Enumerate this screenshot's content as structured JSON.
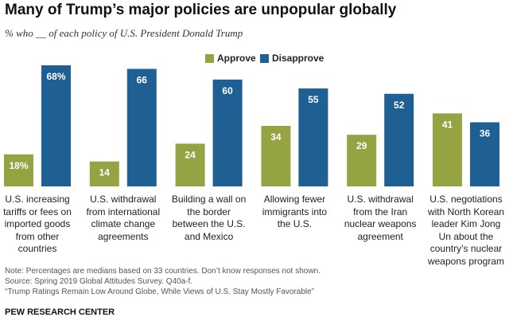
{
  "title": "Many of Trump’s major policies are unpopular globally",
  "subtitle": "% who __ of each policy of U.S. President Donald Trump",
  "colors": {
    "approve": "#95a343",
    "disapprove": "#1e5f94"
  },
  "chart_data": {
    "type": "bar",
    "categories": [
      "U.S. increasing tariffs or fees on imported goods from other countries",
      "U.S. withdrawal from international climate change agreements",
      "Building a wall on the border between the U.S. and Mexico",
      "Allowing fewer immigrants into the U.S.",
      "U.S. withdrawal from the Iran nuclear weapons agreement",
      "U.S. negotiations with North Korean leader Kim Jong Un about the country’s nuclear weapons program"
    ],
    "category_lines": [
      [
        "U.S. increasing",
        "tariffs or fees on",
        "imported goods",
        "from other",
        "countries"
      ],
      [
        "U.S. withdrawal",
        "from international",
        "climate change",
        "agreements"
      ],
      [
        "Building a wall on",
        "the border",
        "between the U.S.",
        "and Mexico"
      ],
      [
        "Allowing fewer",
        "immigrants into",
        "the U.S."
      ],
      [
        "U.S. withdrawal",
        "from the Iran",
        "nuclear weapons",
        "agreement"
      ],
      [
        "U.S. negotiations",
        "with North Korean",
        "leader Kim Jong",
        "Un about the",
        "country’s nuclear",
        "weapons program"
      ]
    ],
    "series": [
      {
        "name": "Approve",
        "values": [
          18,
          14,
          24,
          34,
          29,
          41
        ],
        "labels": [
          "18%",
          "14",
          "24",
          "34",
          "29",
          "41"
        ]
      },
      {
        "name": "Disapprove",
        "values": [
          68,
          66,
          60,
          55,
          52,
          36
        ],
        "labels": [
          "68%",
          "66",
          "60",
          "55",
          "52",
          "36"
        ]
      }
    ],
    "ylim": [
      0,
      68
    ],
    "grid": false,
    "legend": "top-center"
  },
  "notes": [
    "Note: Percentages are medians based on 33 countries. Don’t know responses not shown.",
    "Source: Spring 2019 Global Attitudes Survey. Q40a-f.",
    "“Trump Ratings Remain Low Around Globe, While Views of U.S. Stay Mostly Favorable”"
  ],
  "brand": "PEW RESEARCH CENTER"
}
